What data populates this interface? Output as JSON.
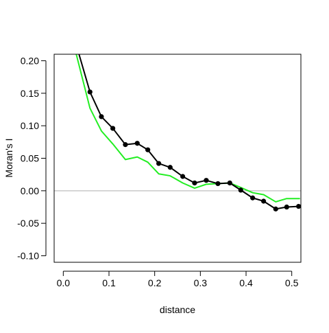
{
  "chart_data": {
    "type": "line",
    "title": "",
    "xlabel": "distance",
    "ylabel": "Moran's I",
    "xlim": [
      -0.02,
      0.52
    ],
    "ylim": [
      -0.11,
      0.21
    ],
    "x_ticks": [
      0.0,
      0.1,
      0.2,
      0.3,
      0.4,
      0.5
    ],
    "x_tick_labels": [
      "0.0",
      "0.1",
      "0.2",
      "0.3",
      "0.4",
      "0.5"
    ],
    "y_ticks": [
      -0.1,
      -0.05,
      0.0,
      0.05,
      0.1,
      0.15,
      0.2
    ],
    "y_tick_labels": [
      "-0.10",
      "-0.05",
      "0.00",
      "0.05",
      "0.10",
      "0.15",
      "0.20"
    ],
    "grid": false,
    "reference_line": {
      "y": 0.0,
      "color": "#bebebe"
    },
    "series": [
      {
        "color": "#000000",
        "markers": true,
        "x": [
          0.0344,
          0.0584,
          0.0834,
          0.1084,
          0.1359,
          0.1619,
          0.1849,
          0.2089,
          0.2339,
          0.2614,
          0.2874,
          0.3129,
          0.3384,
          0.3644,
          0.3884,
          0.4144,
          0.4384,
          0.4649,
          0.4889,
          0.5149
        ],
        "y": [
          0.21,
          0.152,
          0.114,
          0.096,
          0.071,
          0.073,
          0.063,
          0.042,
          0.036,
          0.022,
          0.012,
          0.016,
          0.011,
          0.012,
          0.001,
          -0.011,
          -0.016,
          -0.028,
          -0.025,
          -0.024
        ],
        "marker_from_index": 1
      },
      {
        "color": "#22ee22",
        "markers": false,
        "x": [
          0.0284,
          0.0584,
          0.0834,
          0.1084,
          0.1359,
          0.1619,
          0.1849,
          0.2089,
          0.2339,
          0.2614,
          0.2874,
          0.3129,
          0.3384,
          0.3644,
          0.3884,
          0.4144,
          0.4384,
          0.4649,
          0.4889,
          0.518
        ],
        "y": [
          0.21,
          0.127,
          0.092,
          0.072,
          0.048,
          0.052,
          0.044,
          0.026,
          0.023,
          0.012,
          0.004,
          0.01,
          0.011,
          0.012,
          0.005,
          -0.003,
          -0.006,
          -0.017,
          -0.012,
          -0.012
        ]
      }
    ]
  }
}
